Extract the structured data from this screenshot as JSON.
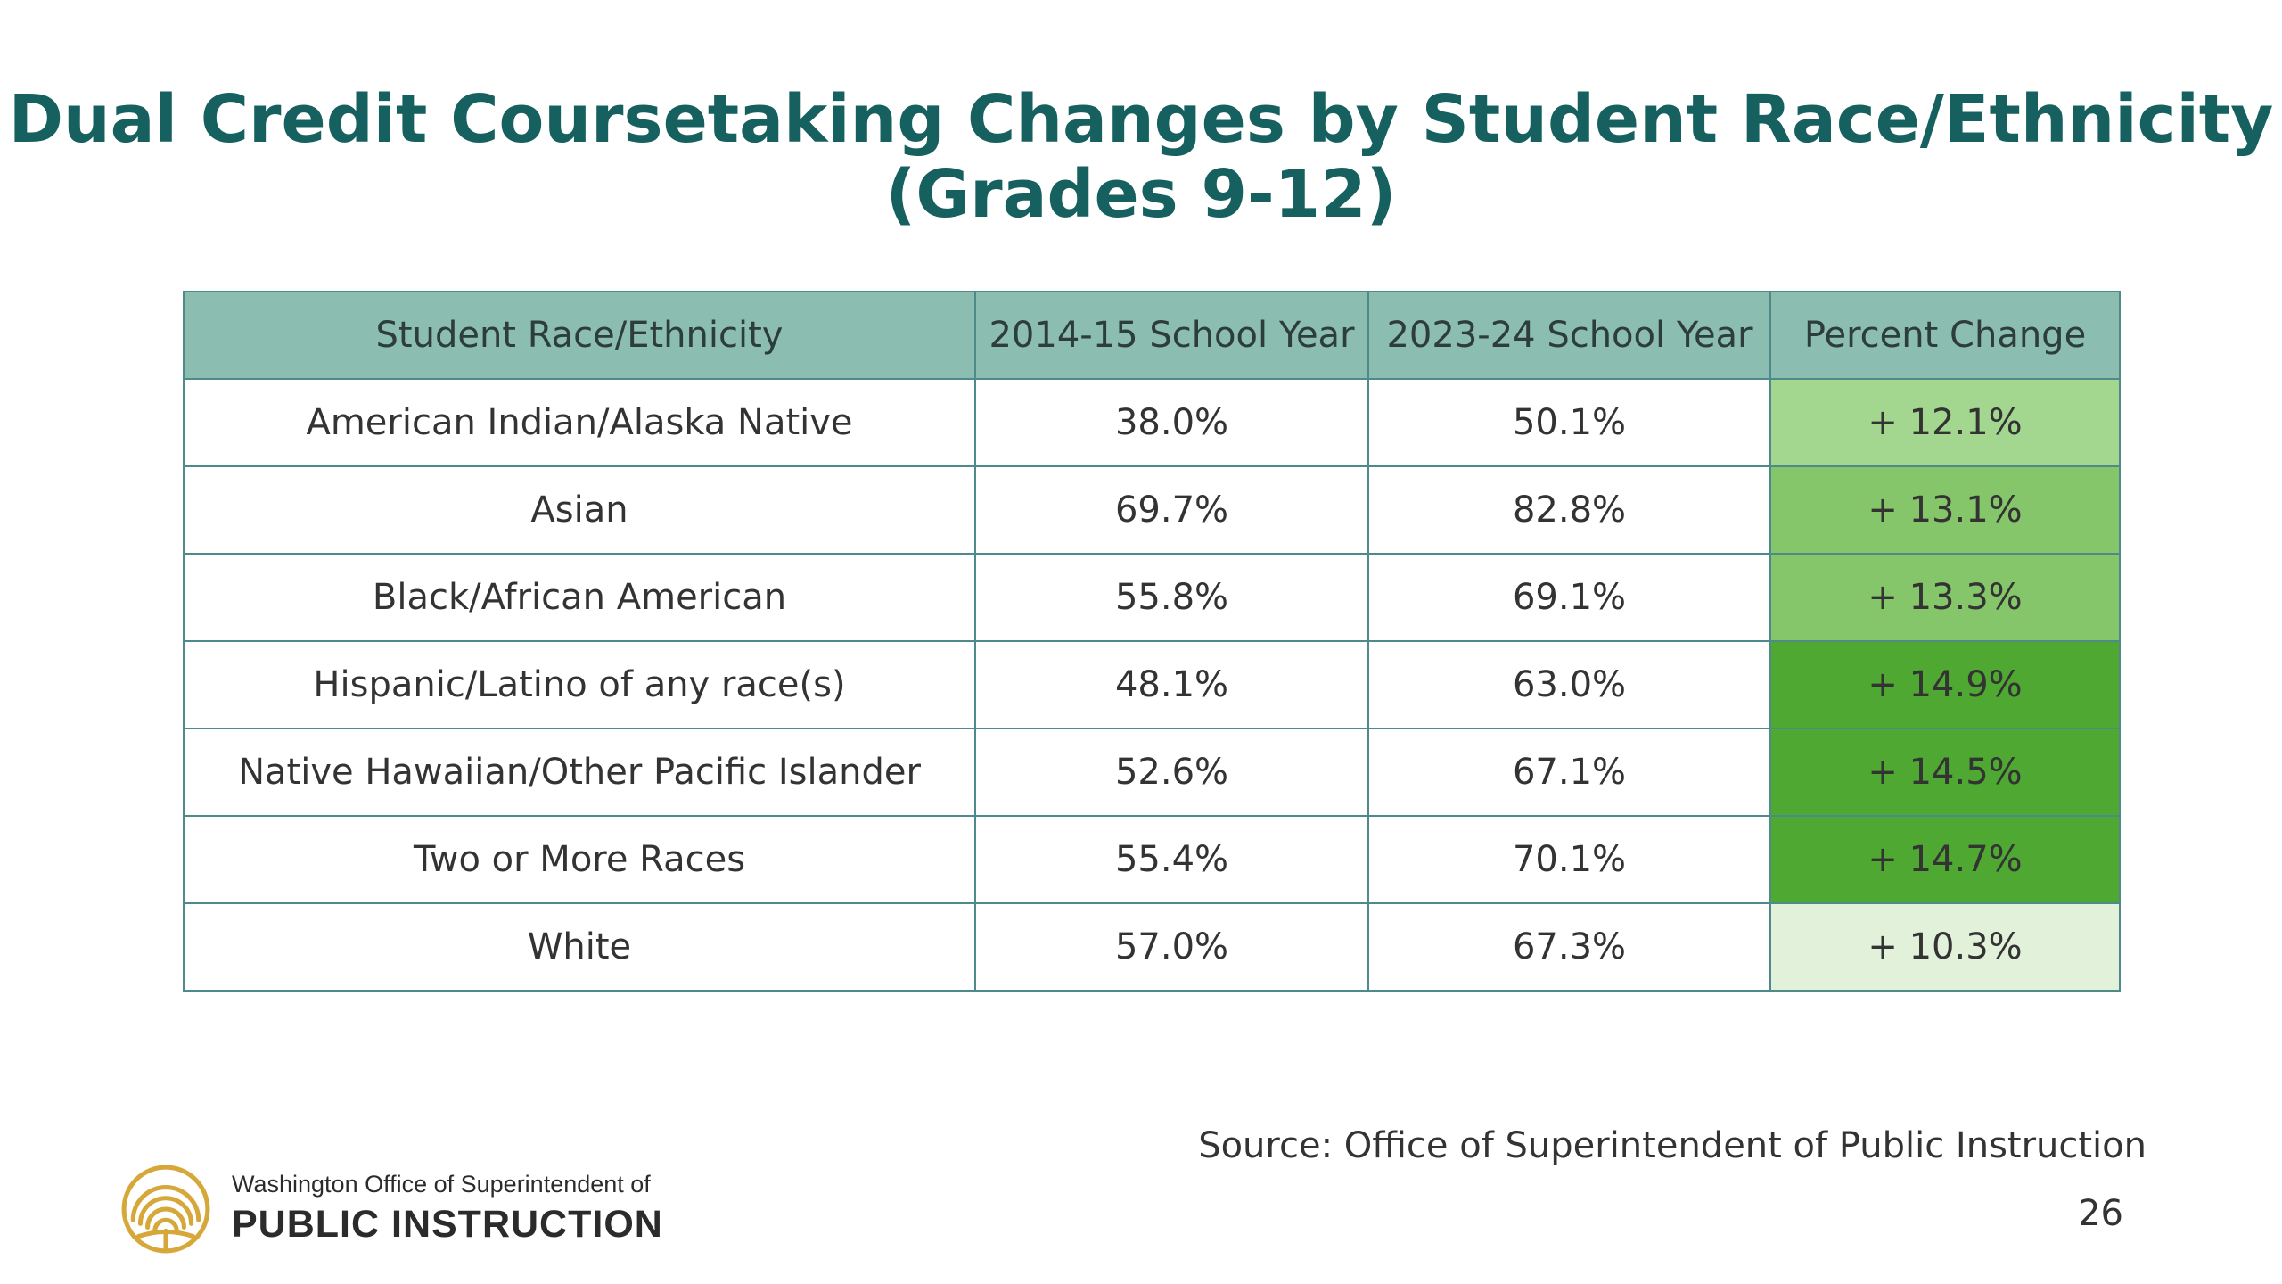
{
  "slide": {
    "title_line1": "Dual Credit Coursetaking Changes by Student Race/Ethnicity",
    "title_line2": "(Grades 9-12)",
    "source": "Source: Office of Superintendent of Public Instruction",
    "page_number": "26"
  },
  "table": {
    "headers": [
      "Student Race/Ethnicity",
      "2014-15 School Year",
      "2023-24 School Year",
      "Percent Change"
    ],
    "rows": [
      [
        "American Indian/Alaska Native",
        "38.0%",
        "50.1%",
        "+ 12.1%"
      ],
      [
        "Asian",
        "69.7%",
        "82.8%",
        "+ 13.1%"
      ],
      [
        "Black/African American",
        "55.8%",
        "69.1%",
        "+ 13.3%"
      ],
      [
        "Hispanic/Latino of any race(s)",
        "48.1%",
        "63.0%",
        "+ 14.9%"
      ],
      [
        "Native Hawaiian/Other Pacific Islander",
        "52.6%",
        "67.1%",
        "+ 14.5%"
      ],
      [
        "Two or More Races",
        "55.4%",
        "70.1%",
        "+ 14.7%"
      ],
      [
        "White",
        "57.0%",
        "67.3%",
        "+ 10.3%"
      ]
    ],
    "change_colors": [
      "#a3d78f",
      "#86c66a",
      "#86c66a",
      "#4ea832",
      "#4ea832",
      "#4ea832",
      "#e2f2da"
    ]
  },
  "logo": {
    "line1": "Washington Office of Superintendent of",
    "line2": "PUBLIC INSTRUCTION",
    "icon": "ospi-rainbow-seal-icon",
    "color": "#d6a83a"
  }
}
